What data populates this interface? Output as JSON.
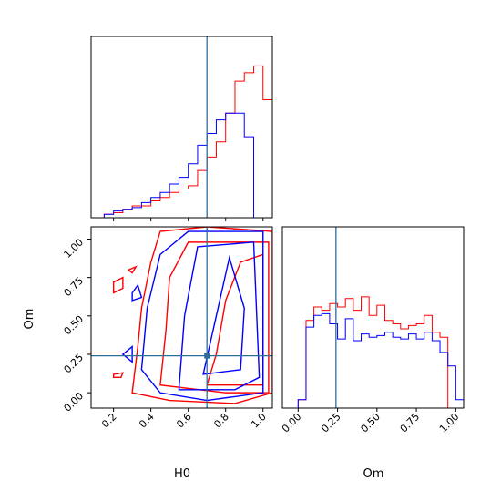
{
  "chart_data": {
    "type": "corner",
    "parameters": [
      "H0",
      "Om"
    ],
    "truth": {
      "H0": 0.7,
      "Om": 0.24
    },
    "colors": {
      "red": "#ff0000",
      "blue": "#0000ff",
      "truth": "#2d6e9e"
    },
    "panels": [
      {
        "id": "h0-histogram",
        "type": "histogram-step",
        "xlim": [
          0.08,
          1.05
        ],
        "x_ticks": [
          0.2,
          0.4,
          0.6,
          0.8,
          1.0
        ],
        "bin_edges": [
          0.15,
          0.2,
          0.25,
          0.3,
          0.35,
          0.4,
          0.45,
          0.5,
          0.55,
          0.6,
          0.65,
          0.7,
          0.75,
          0.8,
          0.85,
          0.9,
          0.95,
          1.0,
          1.05
        ],
        "series": [
          {
            "name": "red",
            "color": "#ff0000",
            "values": [
              0.02,
              0.03,
              0.05,
              0.07,
              0.07,
              0.1,
              0.12,
              0.15,
              0.17,
              0.19,
              0.28,
              0.36,
              0.45,
              0.62,
              0.81,
              0.86,
              0.9,
              0.7,
              0.06
            ]
          },
          {
            "name": "blue",
            "color": "#0000ff",
            "values": [
              0.02,
              0.04,
              0.05,
              0.06,
              0.09,
              0.12,
              0.15,
              0.2,
              0.24,
              0.32,
              0.43,
              0.5,
              0.58,
              0.62,
              0.62,
              0.48,
              0.0,
              0.0,
              0.0
            ]
          }
        ]
      },
      {
        "id": "om-histogram",
        "type": "histogram-step",
        "xlim": [
          -0.1,
          1.05
        ],
        "x_ticks": [
          0.0,
          0.25,
          0.5,
          0.75,
          1.0
        ],
        "x_tick_labels": [
          "0.00",
          "0.25",
          "0.50",
          "0.75",
          "1.00"
        ],
        "xlabel": "Om",
        "bin_edges": [
          0.0,
          0.05,
          0.1,
          0.15,
          0.2,
          0.25,
          0.3,
          0.35,
          0.4,
          0.45,
          0.5,
          0.55,
          0.6,
          0.65,
          0.7,
          0.75,
          0.8,
          0.85,
          0.9,
          0.95,
          1.0,
          1.05
        ],
        "series": [
          {
            "name": "red",
            "color": "#ff0000",
            "values": [
              0.05,
              0.52,
              0.6,
              0.58,
              0.62,
              0.6,
              0.65,
              0.58,
              0.66,
              0.55,
              0.61,
              0.52,
              0.5,
              0.47,
              0.49,
              0.5,
              0.55,
              0.45,
              0.42,
              0.0,
              0.0
            ]
          },
          {
            "name": "blue",
            "color": "#0000ff",
            "values": [
              0.05,
              0.48,
              0.55,
              0.56,
              0.5,
              0.41,
              0.53,
              0.4,
              0.44,
              0.42,
              0.43,
              0.45,
              0.42,
              0.41,
              0.44,
              0.41,
              0.45,
              0.4,
              0.33,
              0.25,
              0.05
            ]
          }
        ]
      },
      {
        "id": "joint-contour",
        "type": "contour",
        "xlim": [
          0.08,
          1.05
        ],
        "ylim": [
          -0.1,
          1.08
        ],
        "x_ticks": [
          0.2,
          0.4,
          0.6,
          0.8,
          1.0
        ],
        "y_ticks": [
          0.0,
          0.25,
          0.5,
          0.75,
          1.0
        ],
        "y_tick_labels": [
          "0.00",
          "0.25",
          "0.50",
          "0.75",
          "1.00"
        ],
        "xlabel": "H0",
        "ylabel": "Om",
        "series": [
          {
            "name": "red",
            "color": "#ff0000",
            "contours": [
              [
                [
                  0.3,
                  0.0
                ],
                [
                  0.33,
                  0.3
                ],
                [
                  0.35,
                  0.55
                ],
                [
                  0.4,
                  0.85
                ],
                [
                  0.45,
                  1.05
                ],
                [
                  0.7,
                  1.08
                ],
                [
                  1.05,
                  1.05
                ],
                [
                  1.05,
                  0.0
                ],
                [
                  0.85,
                  -0.07
                ],
                [
                  0.5,
                  -0.05
                ]
              ],
              [
                [
                  0.45,
                  0.05
                ],
                [
                  0.48,
                  0.4
                ],
                [
                  0.5,
                  0.75
                ],
                [
                  0.6,
                  0.98
                ],
                [
                  1.03,
                  0.98
                ],
                [
                  1.03,
                  0.0
                ],
                [
                  0.8,
                  0.0
                ]
              ],
              [
                [
                  0.7,
                  0.05
                ],
                [
                  0.75,
                  0.25
                ],
                [
                  0.8,
                  0.6
                ],
                [
                  0.88,
                  0.85
                ],
                [
                  1.0,
                  0.9
                ],
                [
                  1.0,
                  0.05
                ]
              ],
              [
                [
                  0.2,
                  0.72
                ],
                [
                  0.25,
                  0.75
                ],
                [
                  0.25,
                  0.68
                ],
                [
                  0.2,
                  0.65
                ]
              ],
              [
                [
                  0.2,
                  0.12
                ],
                [
                  0.25,
                  0.13
                ],
                [
                  0.24,
                  0.1
                ],
                [
                  0.2,
                  0.1
                ]
              ],
              [
                [
                  0.28,
                  0.8
                ],
                [
                  0.32,
                  0.82
                ],
                [
                  0.3,
                  0.78
                ]
              ]
            ]
          },
          {
            "name": "blue",
            "color": "#0000ff",
            "contours": [
              [
                [
                  0.35,
                  0.15
                ],
                [
                  0.38,
                  0.55
                ],
                [
                  0.45,
                  0.9
                ],
                [
                  0.6,
                  1.05
                ],
                [
                  1.0,
                  1.05
                ],
                [
                  1.0,
                  0.0
                ],
                [
                  0.7,
                  -0.05
                ],
                [
                  0.45,
                  0.0
                ]
              ],
              [
                [
                  0.55,
                  0.02
                ],
                [
                  0.58,
                  0.5
                ],
                [
                  0.65,
                  0.95
                ],
                [
                  0.95,
                  0.98
                ],
                [
                  0.98,
                  0.1
                ],
                [
                  0.85,
                  0.02
                ]
              ],
              [
                [
                  0.68,
                  0.12
                ],
                [
                  0.75,
                  0.5
                ],
                [
                  0.82,
                  0.88
                ],
                [
                  0.9,
                  0.55
                ],
                [
                  0.88,
                  0.15
                ]
              ],
              [
                [
                  0.3,
                  0.65
                ],
                [
                  0.33,
                  0.7
                ],
                [
                  0.35,
                  0.62
                ],
                [
                  0.3,
                  0.6
                ]
              ],
              [
                [
                  0.25,
                  0.25
                ],
                [
                  0.3,
                  0.3
                ],
                [
                  0.3,
                  0.2
                ]
              ]
            ]
          }
        ]
      }
    ]
  }
}
